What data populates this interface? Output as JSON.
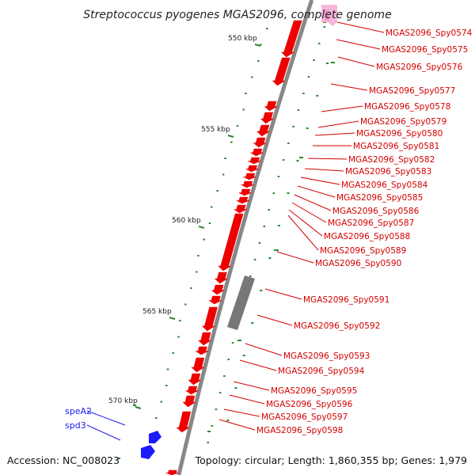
{
  "title": "Streptococcus pyogenes MGAS2096, complete genome",
  "accession": "Accession: NC_008023",
  "topology": "Topology: circular; Length: 1,860,355 bp; Genes: 1,979",
  "ticks": [
    "550 kbp",
    "555 kbp",
    "560 kbp",
    "565 kbp",
    "570 kbp"
  ],
  "genes_red": [
    "MGAS2096_Spy0574",
    "MGAS2096_Spy0575",
    "MGAS2096_Spy0576",
    "MGAS2096_Spy0577",
    "MGAS2096_Spy0578",
    "MGAS2096_Spy0579",
    "MGAS2096_Spy0580",
    "MGAS2096_Spy0581",
    "MGAS2096_Spy0582",
    "MGAS2096_Spy0583",
    "MGAS2096_Spy0584",
    "MGAS2096_Spy0585",
    "MGAS2096_Spy0586",
    "MGAS2096_Spy0587",
    "MGAS2096_Spy0588",
    "MGAS2096_Spy0589",
    "MGAS2096_Spy0590",
    "MGAS2096_Spy0591",
    "MGAS2096_Spy0592",
    "MGAS2096_Spy0593",
    "MGAS2096_Spy0594",
    "MGAS2096_Spy0595",
    "MGAS2096_Spy0596",
    "MGAS2096_Spy0597",
    "MGAS2096_Spy0598"
  ],
  "genes_blue": [
    "speA2",
    "spd3"
  ],
  "colors": {
    "cds": "#ee0000",
    "pseudo": "#777777",
    "other": "#1a1aff",
    "rna": "#f6b6dc",
    "label_red": "#d40000",
    "label_blue": "#1a1aee",
    "backbone": "#888888",
    "gc": "#2a8a2a"
  }
}
